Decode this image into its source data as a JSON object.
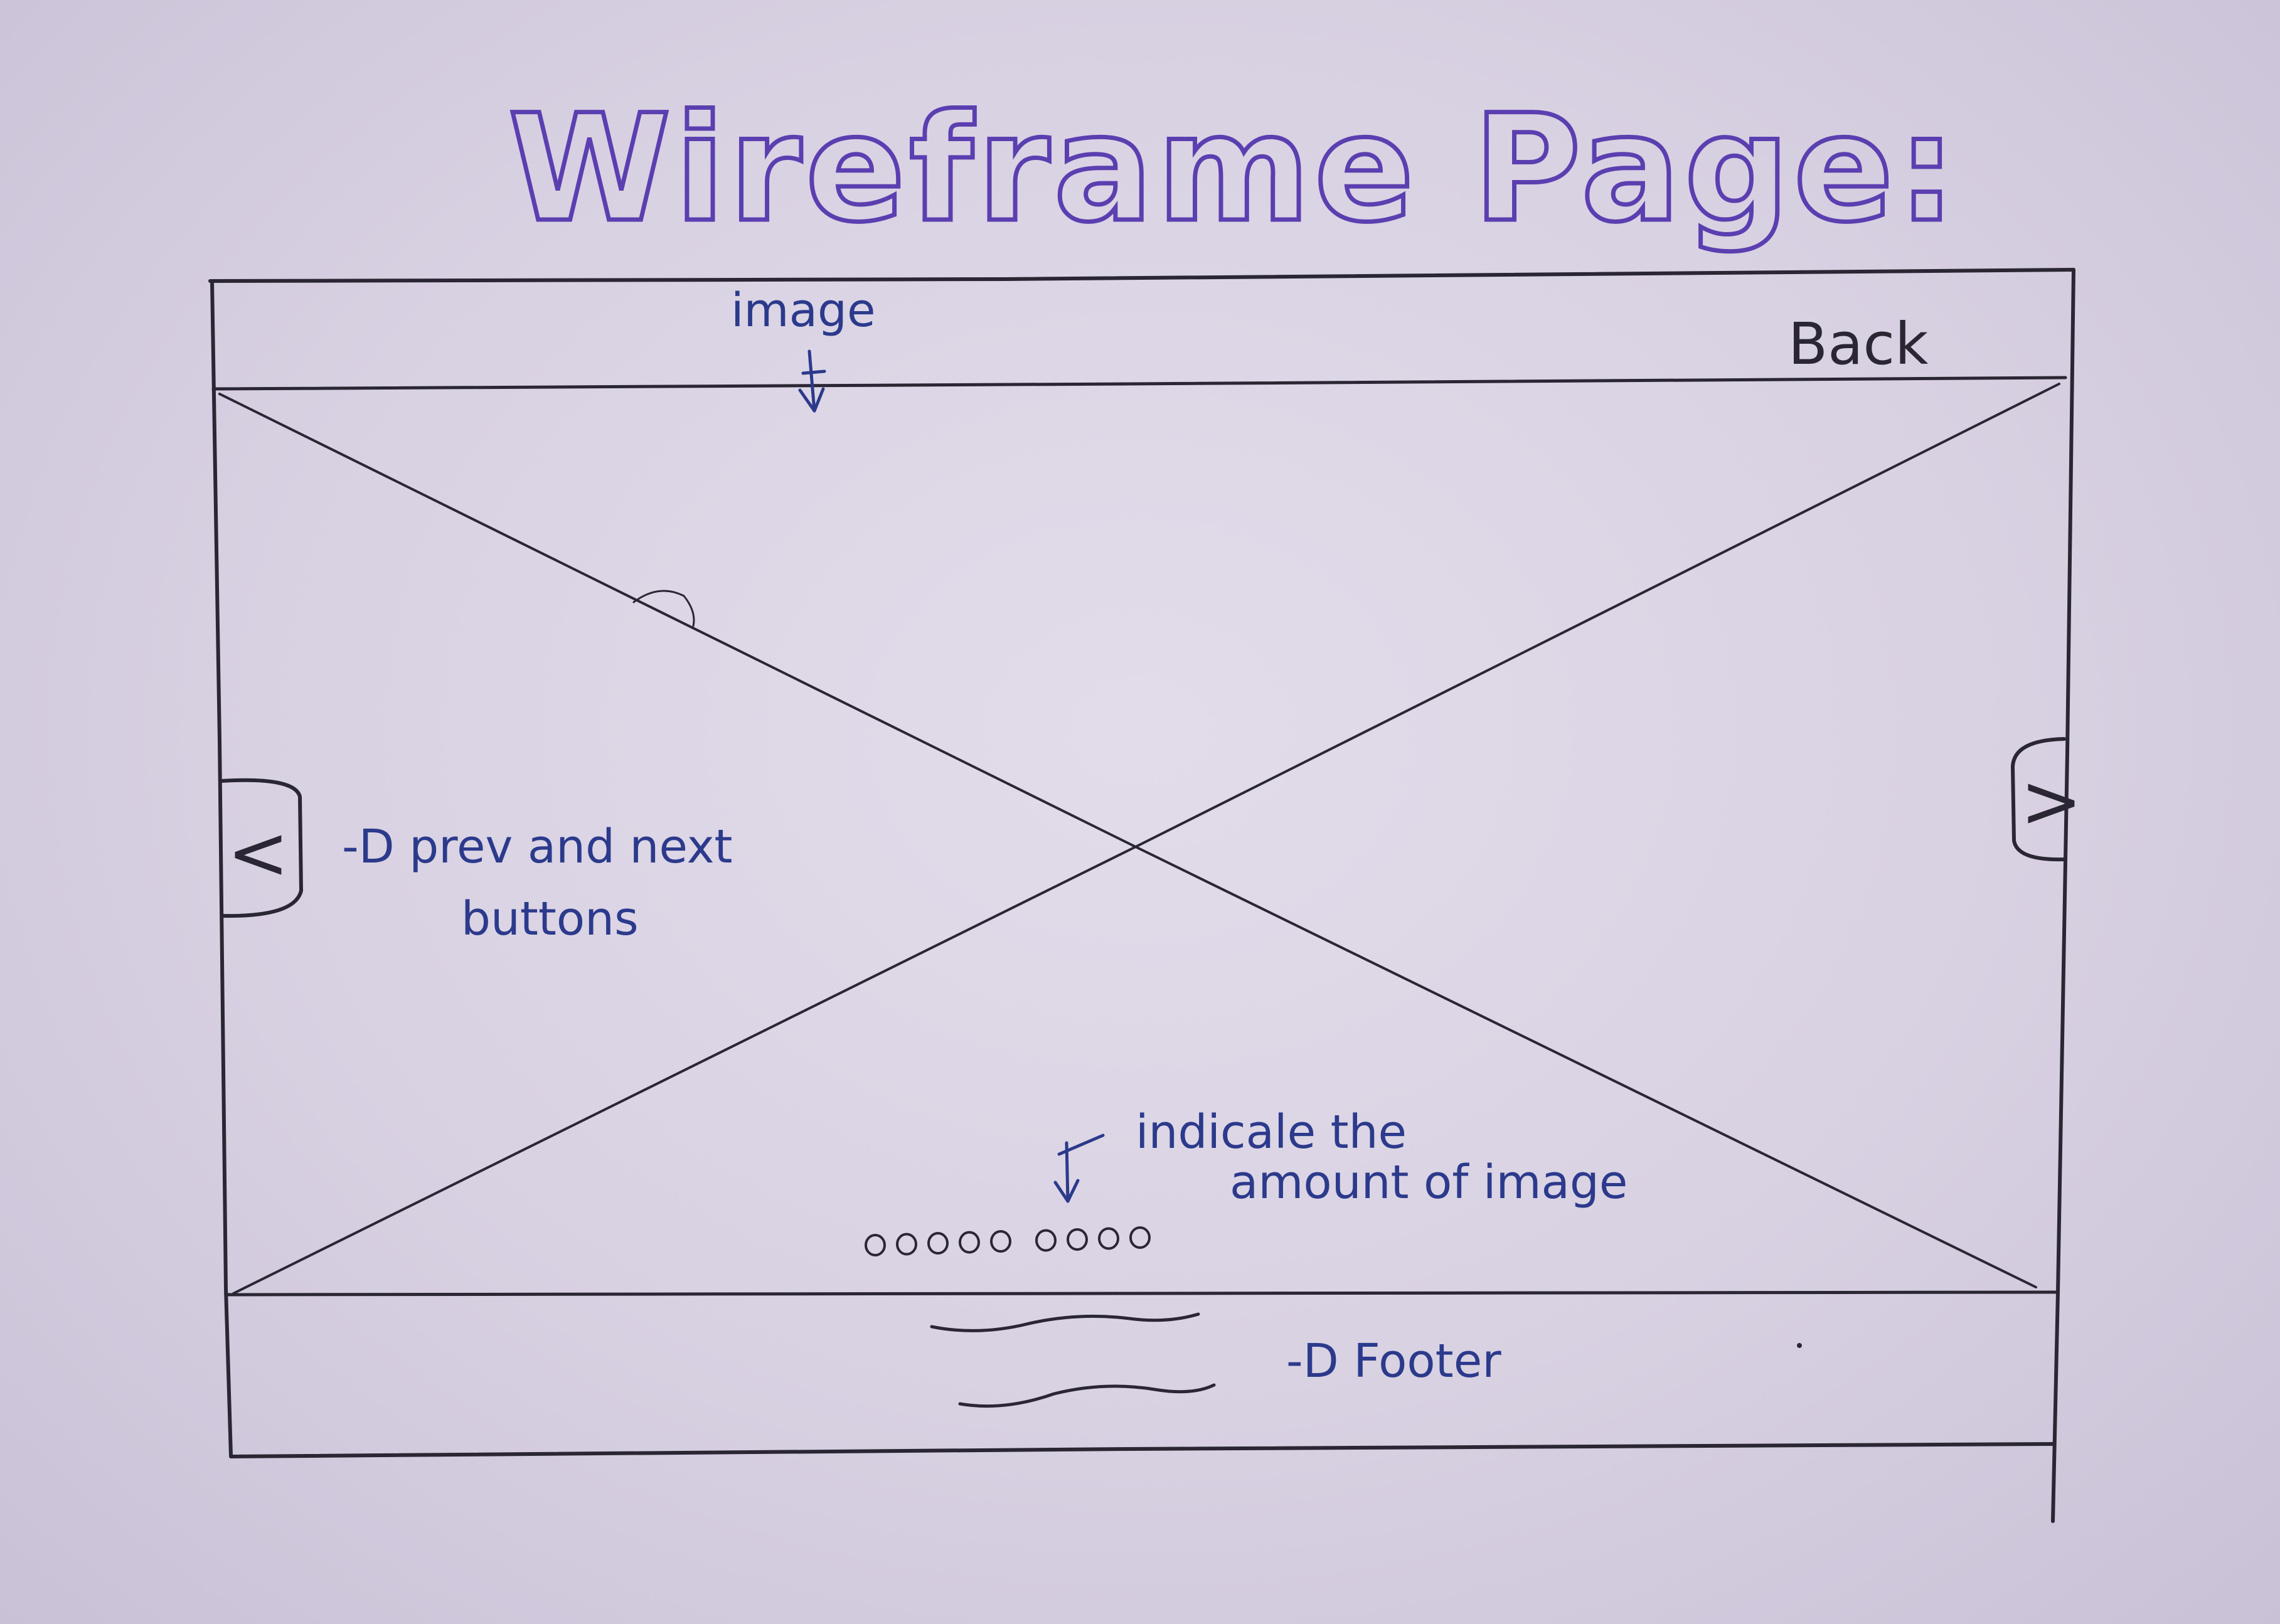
{
  "title": "Wireframe Page:",
  "header": {
    "back_label": "Back"
  },
  "annotations": {
    "image": "image",
    "nav_buttons_line1": "-D prev and next",
    "nav_buttons_line2": "buttons",
    "indicator_line1": "indicale the",
    "indicator_line2": "amount  of  image",
    "footer": "-D Footer"
  },
  "controls": {
    "prev_glyph": "<",
    "next_glyph": ">"
  },
  "indicator": {
    "dot_count": 9
  },
  "colors": {
    "ink_black": "#2b2633",
    "ink_blue": "#2c3a8c",
    "ink_purple": "#5b3fb0",
    "paper": "#dcd6e6"
  }
}
